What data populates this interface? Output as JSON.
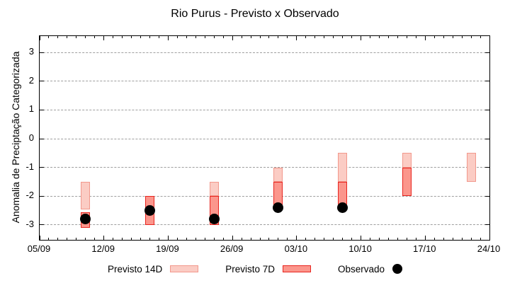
{
  "page": {
    "title": "Rio Purus - Previsto x Observado"
  },
  "axes": {
    "ylabel": "Anomalia de Preciptação Categorizada",
    "y_ticks": [
      {
        "value": 3,
        "label": "3"
      },
      {
        "value": 2,
        "label": "2"
      },
      {
        "value": 1,
        "label": "1"
      },
      {
        "value": 0,
        "label": "0"
      },
      {
        "value": -1,
        "label": "-1"
      },
      {
        "value": -2,
        "label": "-2"
      },
      {
        "value": -3,
        "label": "-3"
      }
    ],
    "x_ticks": [
      {
        "day": 0,
        "label": "05/09"
      },
      {
        "day": 7,
        "label": "12/09"
      },
      {
        "day": 14,
        "label": "19/09"
      },
      {
        "day": 21,
        "label": "26/09"
      },
      {
        "day": 28,
        "label": "03/10"
      },
      {
        "day": 35,
        "label": "10/10"
      },
      {
        "day": 42,
        "label": "17/10"
      },
      {
        "day": 49,
        "label": "24/10"
      }
    ],
    "minor_tick_every_days": 1
  },
  "legend": {
    "items": [
      {
        "label": "Previsto 14D",
        "swatch": "bar-14d"
      },
      {
        "label": "Previsto 7D",
        "swatch": "bar-7d"
      },
      {
        "label": "Observado",
        "swatch": "dot"
      }
    ]
  },
  "colors": {
    "previsto14d_fill": "#fbccc4",
    "previsto14d_border": "#f2988c",
    "previsto7d_fill": "#fb968c",
    "previsto7d_border": "#e8251f",
    "observado": "#000000",
    "grid": "#9e9e9e",
    "axis": "#000000"
  },
  "chart_data": {
    "type": "bar",
    "subtype": "floating-range-bars-with-scatter-overlay",
    "title": "Rio Purus - Previsto x Observado",
    "xlabel": "",
    "ylabel": "Anomalia de Preciptação Categorizada",
    "ylim": [
      -3.52,
      3.57
    ],
    "xlim_days": [
      0,
      49
    ],
    "x_start_date": "05/09",
    "x_end_date": "24/10",
    "grid": "horizontal-dashed",
    "legend_position": "below",
    "groups": [
      {
        "date": "10/09",
        "day": 5,
        "previsto14d": [
          -2.45,
          -1.5
        ],
        "previsto7d": [
          -3.1,
          -2.55
        ],
        "observado": -2.8
      },
      {
        "date": "17/09",
        "day": 12,
        "previsto14d": [
          -3.0,
          -2.0
        ],
        "previsto7d": [
          -3.0,
          -2.0
        ],
        "observado": -2.5
      },
      {
        "date": "24/09",
        "day": 19,
        "previsto14d": [
          -2.0,
          -1.5
        ],
        "previsto7d": [
          -3.0,
          -2.0
        ],
        "observado": -2.8
      },
      {
        "date": "01/10",
        "day": 26,
        "previsto14d": [
          -1.5,
          -1.0
        ],
        "previsto7d": [
          -2.4,
          -1.5
        ],
        "observado": -2.4
      },
      {
        "date": "08/10",
        "day": 33,
        "previsto14d": [
          -1.5,
          -0.5
        ],
        "previsto7d": [
          -2.3,
          -1.5
        ],
        "observado": -2.4
      },
      {
        "date": "15/10",
        "day": 40,
        "previsto14d": [
          -1.0,
          -0.5
        ],
        "previsto7d": [
          -2.0,
          -1.0
        ],
        "observado": null
      },
      {
        "date": "22/10",
        "day": 47,
        "previsto14d": [
          -1.5,
          -0.5
        ],
        "previsto7d": null,
        "observado": null
      }
    ],
    "series": [
      {
        "name": "Previsto 14D",
        "type": "range-bar"
      },
      {
        "name": "Previsto 7D",
        "type": "range-bar"
      },
      {
        "name": "Observado",
        "type": "scatter"
      }
    ]
  }
}
